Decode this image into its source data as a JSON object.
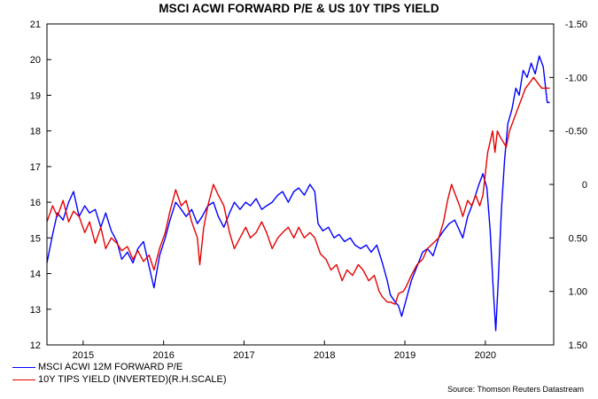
{
  "chart_data": {
    "type": "line",
    "title": "MSCI ACWI FORWARD P/E & US 10Y TIPS YIELD",
    "source": "Source: Thomson Reuters Datastream",
    "x_range": [
      2014.55,
      2020.85
    ],
    "x_ticks": [
      {
        "label": "2015",
        "value": 2015.0
      },
      {
        "label": "2016",
        "value": 2016.0
      },
      {
        "label": "2017",
        "value": 2017.0
      },
      {
        "label": "2018",
        "value": 2018.0
      },
      {
        "label": "2019",
        "value": 2019.0
      },
      {
        "label": "2020",
        "value": 2020.0
      }
    ],
    "left_axis": {
      "ylim": [
        12,
        21
      ],
      "ticks": [
        "12",
        "13",
        "14",
        "15",
        "16",
        "17",
        "18",
        "19",
        "20",
        "21"
      ]
    },
    "right_axis": {
      "inverted": true,
      "ylim": [
        1.5,
        -1.5
      ],
      "ticks": [
        {
          "label": "1.50",
          "value": 1.5
        },
        {
          "label": "1.00",
          "value": 1.0
        },
        {
          "label": "0.50",
          "value": 0.5
        },
        {
          "label": "0",
          "value": 0.0
        },
        {
          "label": "-0.50",
          "value": -0.5
        },
        {
          "label": "-1.00",
          "value": -1.0
        },
        {
          "label": "-1.50",
          "value": -1.5
        }
      ]
    },
    "grid": false,
    "legend_position": "bottom-left",
    "series": [
      {
        "name": "MSCI ACWI 12M FORWARD P/E",
        "axis": "left",
        "color": "#0000ff",
        "points": [
          [
            2014.55,
            14.3
          ],
          [
            2014.62,
            15.1
          ],
          [
            2014.68,
            15.7
          ],
          [
            2014.75,
            15.5
          ],
          [
            2014.82,
            16.0
          ],
          [
            2014.88,
            16.3
          ],
          [
            2014.95,
            15.6
          ],
          [
            2015.02,
            15.9
          ],
          [
            2015.08,
            15.7
          ],
          [
            2015.15,
            15.8
          ],
          [
            2015.22,
            15.3
          ],
          [
            2015.28,
            15.7
          ],
          [
            2015.35,
            15.2
          ],
          [
            2015.42,
            14.9
          ],
          [
            2015.48,
            14.4
          ],
          [
            2015.55,
            14.6
          ],
          [
            2015.62,
            14.3
          ],
          [
            2015.68,
            14.7
          ],
          [
            2015.75,
            14.9
          ],
          [
            2015.82,
            14.2
          ],
          [
            2015.88,
            13.6
          ],
          [
            2015.95,
            14.5
          ],
          [
            2016.02,
            15.0
          ],
          [
            2016.08,
            15.5
          ],
          [
            2016.15,
            16.0
          ],
          [
            2016.22,
            15.8
          ],
          [
            2016.28,
            15.6
          ],
          [
            2016.35,
            15.8
          ],
          [
            2016.42,
            15.4
          ],
          [
            2016.48,
            15.6
          ],
          [
            2016.55,
            15.9
          ],
          [
            2016.62,
            16.0
          ],
          [
            2016.68,
            15.6
          ],
          [
            2016.75,
            15.3
          ],
          [
            2016.82,
            15.7
          ],
          [
            2016.88,
            16.0
          ],
          [
            2016.95,
            15.8
          ],
          [
            2017.02,
            16.0
          ],
          [
            2017.08,
            15.9
          ],
          [
            2017.15,
            16.1
          ],
          [
            2017.22,
            15.8
          ],
          [
            2017.28,
            15.9
          ],
          [
            2017.35,
            16.0
          ],
          [
            2017.42,
            16.2
          ],
          [
            2017.48,
            16.3
          ],
          [
            2017.55,
            16.0
          ],
          [
            2017.62,
            16.3
          ],
          [
            2017.68,
            16.4
          ],
          [
            2017.75,
            16.2
          ],
          [
            2017.82,
            16.5
          ],
          [
            2017.88,
            16.3
          ],
          [
            2017.92,
            15.4
          ],
          [
            2017.98,
            15.2
          ],
          [
            2018.05,
            15.3
          ],
          [
            2018.12,
            15.0
          ],
          [
            2018.18,
            15.1
          ],
          [
            2018.25,
            14.9
          ],
          [
            2018.32,
            15.0
          ],
          [
            2018.38,
            14.8
          ],
          [
            2018.45,
            14.7
          ],
          [
            2018.52,
            14.8
          ],
          [
            2018.58,
            14.6
          ],
          [
            2018.65,
            14.8
          ],
          [
            2018.72,
            14.3
          ],
          [
            2018.78,
            13.8
          ],
          [
            2018.82,
            13.4
          ],
          [
            2018.88,
            13.2
          ],
          [
            2018.92,
            13.1
          ],
          [
            2018.96,
            12.8
          ],
          [
            2019.02,
            13.3
          ],
          [
            2019.08,
            13.8
          ],
          [
            2019.15,
            14.2
          ],
          [
            2019.22,
            14.6
          ],
          [
            2019.28,
            14.7
          ],
          [
            2019.35,
            14.5
          ],
          [
            2019.42,
            15.0
          ],
          [
            2019.48,
            15.2
          ],
          [
            2019.55,
            15.4
          ],
          [
            2019.62,
            15.5
          ],
          [
            2019.68,
            15.2
          ],
          [
            2019.72,
            15.0
          ],
          [
            2019.78,
            15.6
          ],
          [
            2019.85,
            16.0
          ],
          [
            2019.92,
            16.5
          ],
          [
            2019.97,
            16.8
          ],
          [
            2020.02,
            16.4
          ],
          [
            2020.06,
            15.2
          ],
          [
            2020.1,
            13.5
          ],
          [
            2020.13,
            12.4
          ],
          [
            2020.16,
            13.8
          ],
          [
            2020.2,
            15.8
          ],
          [
            2020.24,
            17.2
          ],
          [
            2020.28,
            18.2
          ],
          [
            2020.33,
            18.6
          ],
          [
            2020.38,
            19.2
          ],
          [
            2020.42,
            19.0
          ],
          [
            2020.47,
            19.7
          ],
          [
            2020.52,
            19.5
          ],
          [
            2020.57,
            19.9
          ],
          [
            2020.62,
            19.6
          ],
          [
            2020.67,
            20.1
          ],
          [
            2020.72,
            19.8
          ],
          [
            2020.77,
            18.8
          ],
          [
            2020.8,
            18.8
          ]
        ]
      },
      {
        "name": "10Y TIPS YIELD (INVERTED)(R.H.SCALE)",
        "axis": "right",
        "color": "#e60000",
        "points": [
          [
            2014.55,
            0.35
          ],
          [
            2014.62,
            0.2
          ],
          [
            2014.68,
            0.3
          ],
          [
            2014.75,
            0.15
          ],
          [
            2014.82,
            0.35
          ],
          [
            2014.88,
            0.25
          ],
          [
            2014.95,
            0.3
          ],
          [
            2015.02,
            0.45
          ],
          [
            2015.08,
            0.35
          ],
          [
            2015.15,
            0.55
          ],
          [
            2015.22,
            0.4
          ],
          [
            2015.28,
            0.6
          ],
          [
            2015.35,
            0.5
          ],
          [
            2015.42,
            0.55
          ],
          [
            2015.48,
            0.62
          ],
          [
            2015.55,
            0.58
          ],
          [
            2015.62,
            0.7
          ],
          [
            2015.68,
            0.62
          ],
          [
            2015.75,
            0.72
          ],
          [
            2015.82,
            0.66
          ],
          [
            2015.88,
            0.8
          ],
          [
            2015.95,
            0.6
          ],
          [
            2016.02,
            0.45
          ],
          [
            2016.08,
            0.25
          ],
          [
            2016.15,
            0.05
          ],
          [
            2016.22,
            0.2
          ],
          [
            2016.28,
            0.15
          ],
          [
            2016.35,
            0.35
          ],
          [
            2016.42,
            0.5
          ],
          [
            2016.45,
            0.75
          ],
          [
            2016.5,
            0.4
          ],
          [
            2016.55,
            0.2
          ],
          [
            2016.62,
            0.0
          ],
          [
            2016.68,
            0.1
          ],
          [
            2016.75,
            0.2
          ],
          [
            2016.82,
            0.45
          ],
          [
            2016.88,
            0.6
          ],
          [
            2016.95,
            0.5
          ],
          [
            2017.02,
            0.4
          ],
          [
            2017.08,
            0.5
          ],
          [
            2017.15,
            0.45
          ],
          [
            2017.22,
            0.35
          ],
          [
            2017.28,
            0.45
          ],
          [
            2017.35,
            0.6
          ],
          [
            2017.42,
            0.5
          ],
          [
            2017.48,
            0.45
          ],
          [
            2017.55,
            0.4
          ],
          [
            2017.62,
            0.5
          ],
          [
            2017.68,
            0.4
          ],
          [
            2017.75,
            0.5
          ],
          [
            2017.82,
            0.45
          ],
          [
            2017.88,
            0.5
          ],
          [
            2017.95,
            0.65
          ],
          [
            2018.02,
            0.7
          ],
          [
            2018.08,
            0.8
          ],
          [
            2018.15,
            0.75
          ],
          [
            2018.22,
            0.9
          ],
          [
            2018.28,
            0.8
          ],
          [
            2018.35,
            0.85
          ],
          [
            2018.42,
            0.75
          ],
          [
            2018.48,
            0.8
          ],
          [
            2018.55,
            0.9
          ],
          [
            2018.62,
            0.85
          ],
          [
            2018.68,
            1.0
          ],
          [
            2018.72,
            1.05
          ],
          [
            2018.78,
            1.1
          ],
          [
            2018.82,
            1.1
          ],
          [
            2018.88,
            1.12
          ],
          [
            2018.92,
            1.02
          ],
          [
            2018.98,
            1.0
          ],
          [
            2019.02,
            0.95
          ],
          [
            2019.08,
            0.85
          ],
          [
            2019.15,
            0.75
          ],
          [
            2019.22,
            0.7
          ],
          [
            2019.28,
            0.6
          ],
          [
            2019.35,
            0.55
          ],
          [
            2019.42,
            0.5
          ],
          [
            2019.48,
            0.35
          ],
          [
            2019.53,
            0.15
          ],
          [
            2019.58,
            0.0
          ],
          [
            2019.63,
            0.1
          ],
          [
            2019.68,
            0.2
          ],
          [
            2019.72,
            0.3
          ],
          [
            2019.78,
            0.15
          ],
          [
            2019.83,
            0.2
          ],
          [
            2019.88,
            0.1
          ],
          [
            2019.93,
            0.2
          ],
          [
            2019.97,
            0.1
          ],
          [
            2020.0,
            -0.1
          ],
          [
            2020.03,
            -0.3
          ],
          [
            2020.06,
            -0.4
          ],
          [
            2020.09,
            -0.5
          ],
          [
            2020.12,
            -0.3
          ],
          [
            2020.15,
            -0.5
          ],
          [
            2020.18,
            -0.45
          ],
          [
            2020.22,
            -0.4
          ],
          [
            2020.26,
            -0.35
          ],
          [
            2020.3,
            -0.5
          ],
          [
            2020.35,
            -0.6
          ],
          [
            2020.4,
            -0.7
          ],
          [
            2020.45,
            -0.8
          ],
          [
            2020.5,
            -0.9
          ],
          [
            2020.55,
            -0.95
          ],
          [
            2020.6,
            -1.0
          ],
          [
            2020.65,
            -0.95
          ],
          [
            2020.7,
            -0.9
          ],
          [
            2020.75,
            -0.9
          ],
          [
            2020.8,
            -0.9
          ]
        ]
      }
    ]
  }
}
